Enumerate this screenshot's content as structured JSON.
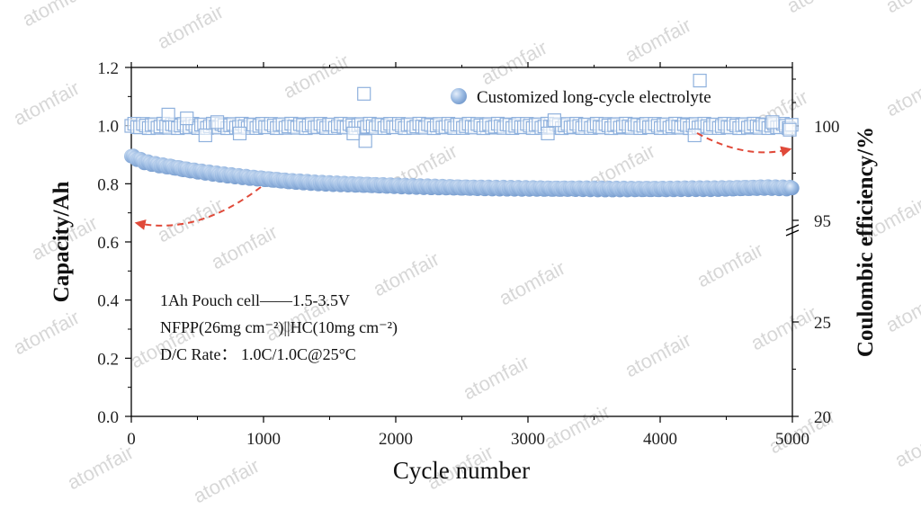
{
  "watermark": "atomfair",
  "chart_data": {
    "type": "scatter",
    "xlabel": "Cycle number",
    "ylabel_left": "Capacity/Ah",
    "ylabel_right": "Coulombic efficiency/%",
    "xlim": [
      0,
      5000
    ],
    "x_ticks": [
      "0",
      "1000",
      "2000",
      "3000",
      "4000",
      "5000"
    ],
    "ylim_left": [
      0.0,
      1.2
    ],
    "y_ticks_left": [
      "0.0",
      "0.2",
      "0.4",
      "0.6",
      "0.8",
      "1.0",
      "1.2"
    ],
    "right_axis": {
      "broken": true,
      "ticks": [
        "20",
        "25",
        "95",
        "100"
      ],
      "lower_range": [
        20,
        25
      ],
      "upper_range": [
        95,
        100
      ]
    },
    "legend": {
      "label": "Customized long-cycle electrolyte",
      "placement": "top-right"
    },
    "annotations": [
      "1Ah Pouch cell——1.5-3.5V",
      "NFPP(26mg cm⁻²)||HC(10mg cm⁻²)",
      "D/C Rate： 1.0C/1.0C@25°C"
    ],
    "series": [
      {
        "marker": "filled-circle",
        "axis": "left",
        "color": "#8fb1dd",
        "x": [
          0,
          100,
          200,
          300,
          400,
          500,
          600,
          700,
          800,
          900,
          1000,
          1200,
          1400,
          1600,
          1800,
          2000,
          2200,
          2400,
          2600,
          2800,
          3000,
          3200,
          3400,
          3600,
          3800,
          4000,
          4200,
          4400,
          4600,
          4800,
          5000
        ],
        "values": [
          0.895,
          0.875,
          0.865,
          0.858,
          0.85,
          0.843,
          0.837,
          0.831,
          0.826,
          0.821,
          0.817,
          0.809,
          0.803,
          0.799,
          0.796,
          0.793,
          0.79,
          0.788,
          0.786,
          0.785,
          0.784,
          0.783,
          0.783,
          0.782,
          0.782,
          0.782,
          0.783,
          0.783,
          0.785,
          0.787,
          0.785
        ]
      },
      {
        "marker": "open-square",
        "axis": "right",
        "color": "#8fb1dd",
        "x": [
          0,
          150,
          300,
          450,
          600,
          750,
          900,
          1100,
          1300,
          1500,
          1700,
          1900,
          2100,
          2300,
          2500,
          2700,
          2900,
          3100,
          3300,
          3500,
          3700,
          3900,
          4100,
          4300,
          4500,
          4700,
          4900,
          5000
        ],
        "values": [
          100.0,
          100.0,
          100.0,
          100.0,
          100.0,
          100.0,
          100.0,
          100.0,
          100.0,
          100.0,
          100.0,
          100.0,
          100.0,
          100.0,
          100.0,
          100.0,
          100.0,
          100.0,
          100.0,
          100.0,
          100.0,
          100.0,
          100.0,
          100.0,
          100.0,
          100.0,
          100.0,
          100.0
        ],
        "outliers": {
          "x": [
            280,
            420,
            560,
            650,
            820,
            1680,
            1760,
            1770,
            3150,
            3200,
            4260,
            4300,
            4850,
            4980
          ],
          "values": [
            100.6,
            100.4,
            99.5,
            100.2,
            99.6,
            99.6,
            101.7,
            99.2,
            99.6,
            100.3,
            99.5,
            102.4,
            100.2,
            99.8
          ]
        }
      }
    ]
  }
}
